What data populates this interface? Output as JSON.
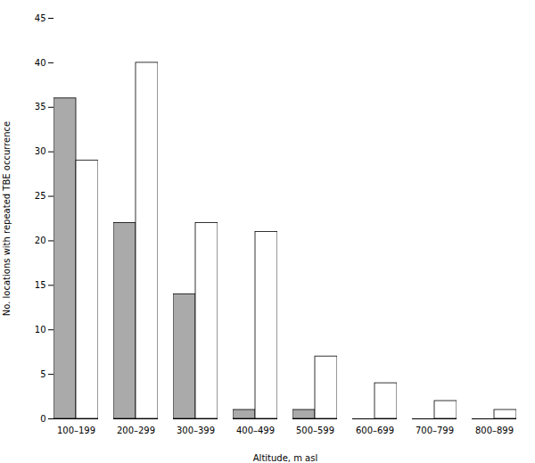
{
  "chart_data": {
    "type": "bar",
    "categories": [
      "100–199",
      "200–299",
      "300–399",
      "400–499",
      "500–599",
      "600–699",
      "700–799",
      "800–899"
    ],
    "series": [
      {
        "color": "#aaaaaa",
        "values": [
          36,
          22,
          14,
          1,
          1,
          0,
          0,
          0
        ]
      },
      {
        "color": "#ffffff",
        "values": [
          29,
          40,
          22,
          21,
          7,
          4,
          2,
          1
        ]
      }
    ],
    "xlabel": "Altitude, m asl",
    "ylabel": "No. locations with repeated TBE occurrence",
    "ylim": [
      0,
      45
    ],
    "yticks": [
      0,
      5,
      10,
      15,
      20,
      25,
      30,
      35,
      40,
      45
    ],
    "grid": false
  }
}
